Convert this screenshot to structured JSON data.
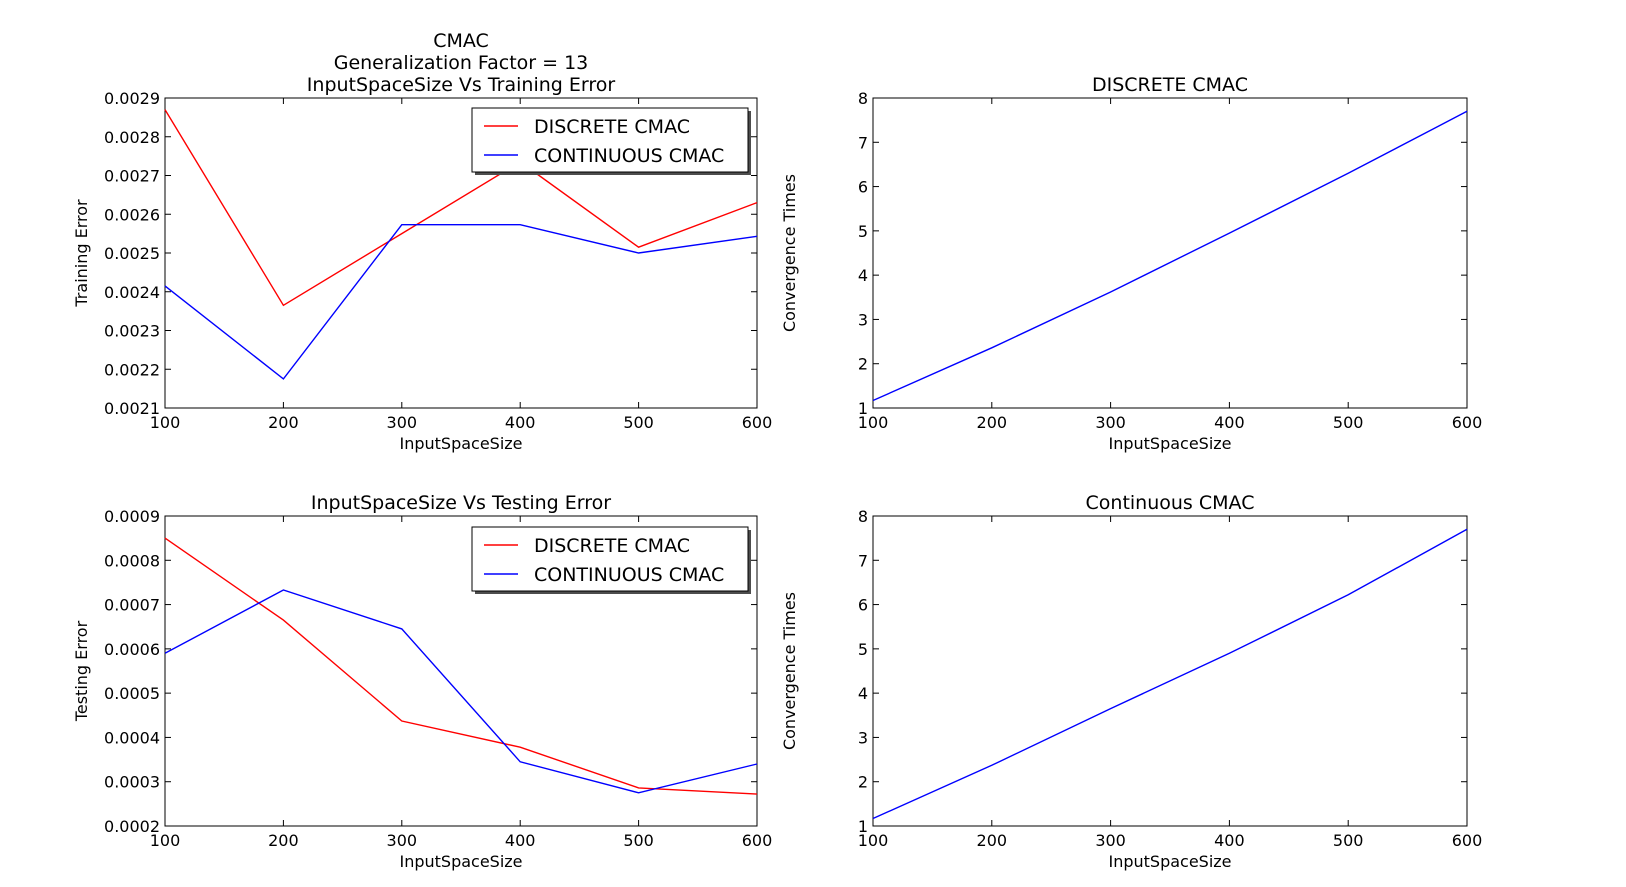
{
  "chart_data": [
    {
      "type": "line",
      "title_lines": [
        "CMAC",
        "Generalization Factor = 13",
        "InputSpaceSize Vs Training Error"
      ],
      "xlabel": "InputSpaceSize",
      "ylabel": "Training Error",
      "xlim": [
        100,
        600
      ],
      "ylim": [
        0.0021,
        0.0029
      ],
      "xticks": [
        "100",
        "200",
        "300",
        "400",
        "500",
        "600"
      ],
      "yticks": [
        "0.0021",
        "0.0022",
        "0.0023",
        "0.0024",
        "0.0025",
        "0.0026",
        "0.0027",
        "0.0028",
        "0.0029"
      ],
      "legend": "top-right",
      "x": [
        100,
        200,
        300,
        400,
        500,
        600
      ],
      "series": [
        {
          "name": "DISCRETE CMAC",
          "color": "#ff0000",
          "values": [
            0.00287,
            0.002365,
            0.00255,
            0.002735,
            0.002515,
            0.00263
          ]
        },
        {
          "name": "CONTINUOUS CMAC",
          "color": "#0000ff",
          "values": [
            0.002415,
            0.002175,
            0.002573,
            0.002573,
            0.0025,
            0.002543
          ]
        }
      ]
    },
    {
      "type": "line",
      "title_lines": [
        "DISCRETE CMAC"
      ],
      "xlabel": "InputSpaceSize",
      "ylabel": "Convergence Times",
      "xlim": [
        100,
        600
      ],
      "ylim": [
        1,
        8
      ],
      "xticks": [
        "100",
        "200",
        "300",
        "400",
        "500",
        "600"
      ],
      "yticks": [
        "1",
        "2",
        "3",
        "4",
        "5",
        "6",
        "7",
        "8"
      ],
      "x": [
        100,
        200,
        300,
        400,
        500,
        600
      ],
      "series": [
        {
          "color": "#0000ff",
          "values": [
            1.17,
            2.36,
            3.62,
            4.95,
            6.3,
            7.7
          ]
        }
      ]
    },
    {
      "type": "line",
      "title_lines": [
        "InputSpaceSize Vs Testing Error"
      ],
      "xlabel": "InputSpaceSize",
      "ylabel": "Testing Error",
      "xlim": [
        100,
        600
      ],
      "ylim": [
        0.0002,
        0.0009
      ],
      "xticks": [
        "100",
        "200",
        "300",
        "400",
        "500",
        "600"
      ],
      "yticks": [
        "0.0002",
        "0.0003",
        "0.0004",
        "0.0005",
        "0.0006",
        "0.0007",
        "0.0008",
        "0.0009"
      ],
      "legend": "top-right",
      "x": [
        100,
        200,
        300,
        400,
        500,
        600
      ],
      "series": [
        {
          "name": "DISCRETE CMAC",
          "color": "#ff0000",
          "values": [
            0.00085,
            0.000665,
            0.000437,
            0.000378,
            0.000286,
            0.000272
          ]
        },
        {
          "name": "CONTINUOUS CMAC",
          "color": "#0000ff",
          "values": [
            0.00059,
            0.000733,
            0.000645,
            0.000345,
            0.000275,
            0.00034
          ]
        }
      ]
    },
    {
      "type": "line",
      "title_lines": [
        "Continuous CMAC"
      ],
      "xlabel": "InputSpaceSize",
      "ylabel": "Convergence Times",
      "xlim": [
        100,
        600
      ],
      "ylim": [
        1,
        8
      ],
      "xticks": [
        "100",
        "200",
        "300",
        "400",
        "500",
        "600"
      ],
      "yticks": [
        "1",
        "2",
        "3",
        "4",
        "5",
        "6",
        "7",
        "8"
      ],
      "x": [
        100,
        200,
        300,
        400,
        500,
        600
      ],
      "series": [
        {
          "color": "#0000ff",
          "values": [
            1.17,
            2.37,
            3.65,
            4.9,
            6.22,
            7.7
          ]
        }
      ]
    }
  ]
}
